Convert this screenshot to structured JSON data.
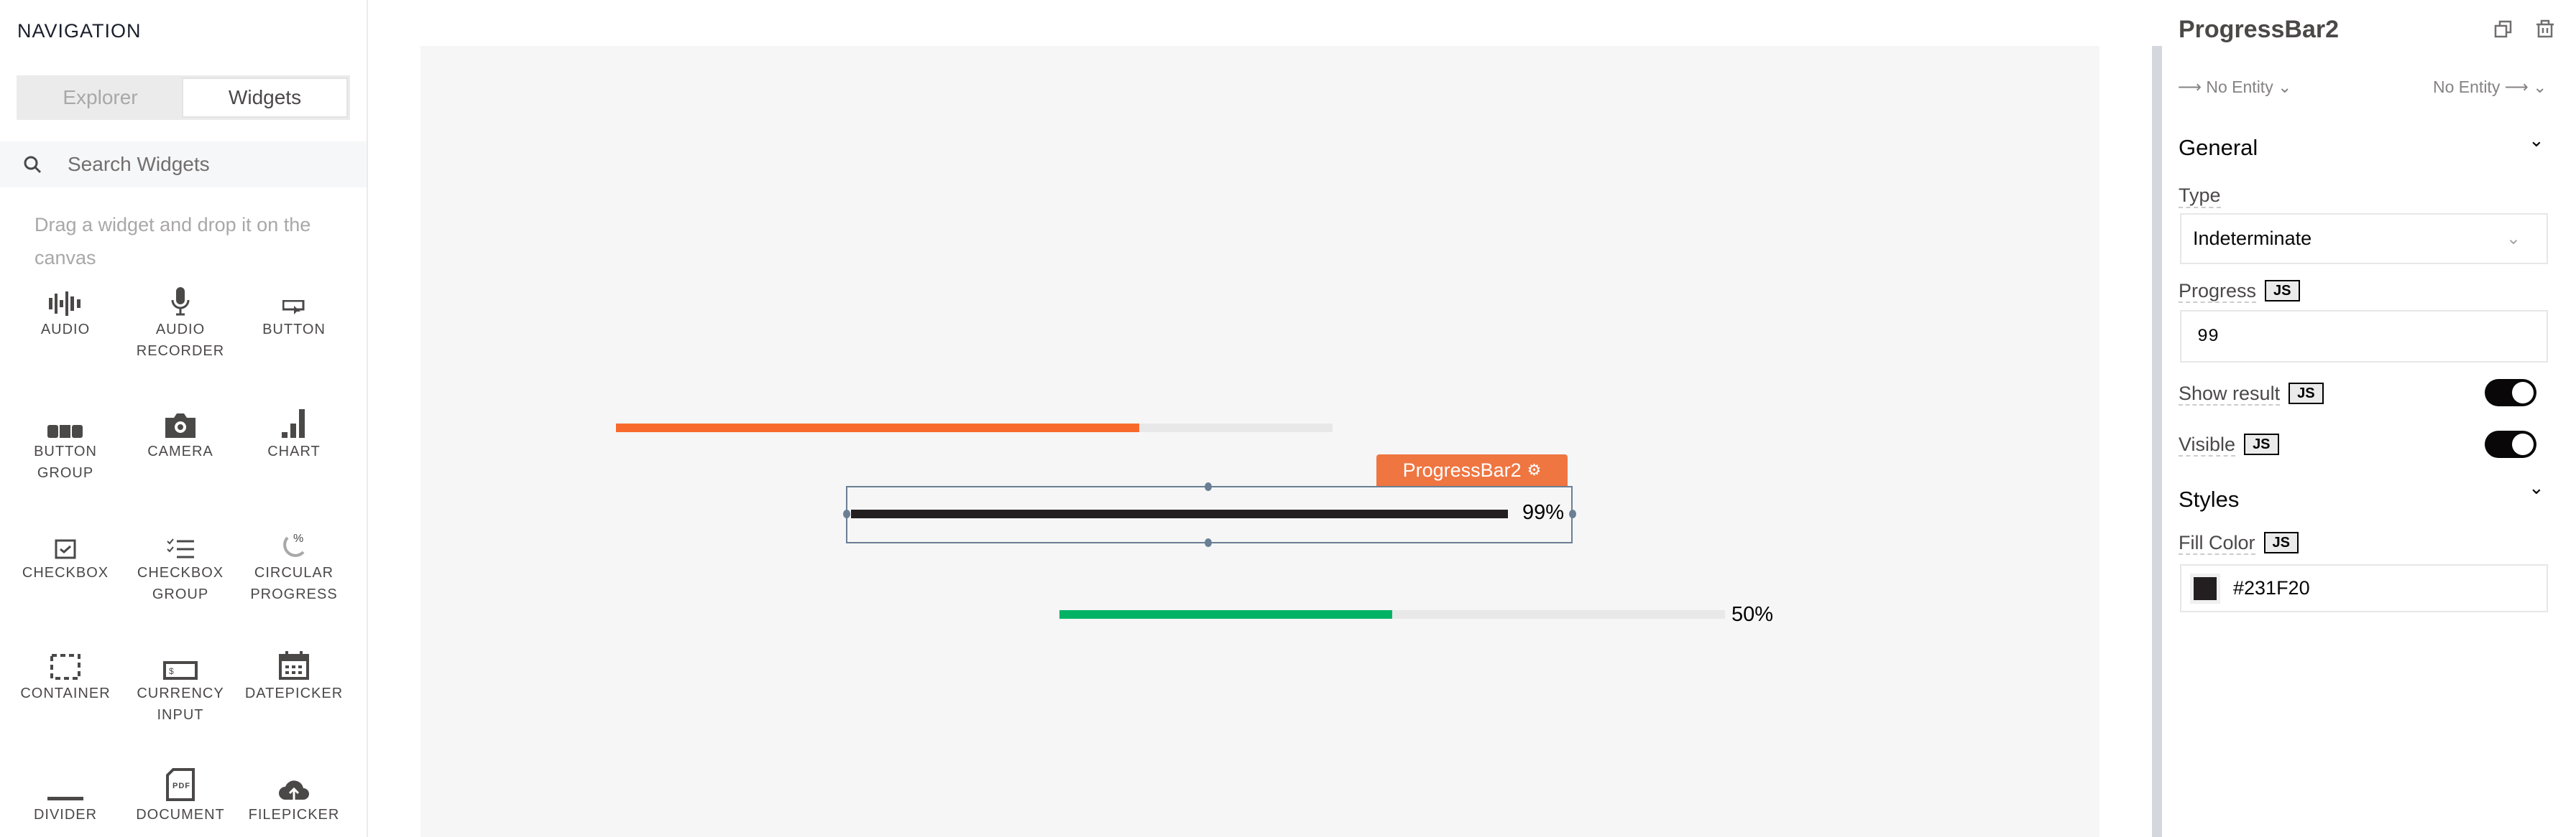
{
  "nav": {
    "title": "NAVIGATION",
    "tabs": [
      "Explorer",
      "Widgets"
    ],
    "active_tab": "Widgets",
    "search_placeholder": "Search Widgets",
    "hint": "Drag a widget and drop it on the canvas",
    "widgets": [
      {
        "label": "AUDIO",
        "icon": "audio-icon"
      },
      {
        "label": "AUDIO RECORDER",
        "icon": "microphone-icon"
      },
      {
        "label": "BUTTON",
        "icon": "button-icon"
      },
      {
        "label": "BUTTON GROUP",
        "icon": "button-group-icon"
      },
      {
        "label": "CAMERA",
        "icon": "camera-icon"
      },
      {
        "label": "CHART",
        "icon": "chart-icon"
      },
      {
        "label": "CHECKBOX",
        "icon": "checkbox-icon"
      },
      {
        "label": "CHECKBOX GROUP",
        "icon": "checklist-icon"
      },
      {
        "label": "CIRCULAR PROGRESS",
        "icon": "circular-progress-icon"
      },
      {
        "label": "CONTAINER",
        "icon": "container-icon"
      },
      {
        "label": "CURRENCY INPUT",
        "icon": "currency-input-icon"
      },
      {
        "label": "DATEPICKER",
        "icon": "calendar-icon"
      },
      {
        "label": "DIVIDER",
        "icon": "divider-icon"
      },
      {
        "label": "DOCUMENT",
        "icon": "pdf-document-icon"
      },
      {
        "label": "FILEPICKER",
        "icon": "cloud-upload-icon"
      }
    ]
  },
  "canvas": {
    "bars": [
      {
        "name": "progress-bar-1",
        "progress": 73,
        "color": "#F86A2B",
        "show_result": false
      },
      {
        "name": "ProgressBar2",
        "progress": 99,
        "color": "#231F20",
        "label": "99%",
        "selected": true
      },
      {
        "name": "progress-bar-3",
        "progress": 50,
        "color": "#03B365",
        "label": "50%"
      }
    ],
    "selected_label": "ProgressBar2",
    "selected_color": "#EF7541"
  },
  "props": {
    "title": "ProgressBar2",
    "entity_in": "No Entity",
    "entity_out": "No Entity",
    "general": "General",
    "type_label": "Type",
    "type_value": "Indeterminate",
    "progress_label": "Progress",
    "progress_value": "99",
    "show_result_label": "Show result",
    "show_result": true,
    "visible_label": "Visible",
    "visible": true,
    "styles": "Styles",
    "fill_color_label": "Fill Color",
    "fill_color": "#231F20",
    "js": "JS"
  }
}
